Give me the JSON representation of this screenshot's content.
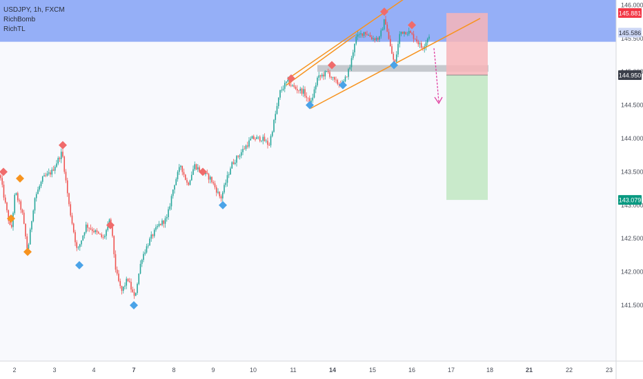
{
  "legend": {
    "symbol_line": "USDJPY, 1h, FXCM",
    "indicator_1": "RichBomb",
    "indicator_2": "RichTL"
  },
  "colors": {
    "bull": "#26a69a",
    "bear": "#ef5350",
    "resistance_zone": "#8fabf7",
    "stop_zone": "#f7b5b8",
    "target_zone": "#c6e9c8",
    "channel": "#f7931e",
    "marker_red": "#f06b6b",
    "marker_blue": "#4aa3e8",
    "marker_orange": "#f7931e",
    "arrow": "#e040a0"
  },
  "chart_data": {
    "type": "candlestick",
    "title": "",
    "xlabel": "",
    "ylabel": "",
    "ylim": [
      141.2,
      146.2
    ],
    "y_ticks": [
      "146.000",
      "145.500",
      "145.000",
      "144.500",
      "144.000",
      "143.500",
      "143.000",
      "142.500",
      "142.000",
      "141.500"
    ],
    "x_ticks": [
      "2",
      "3",
      "4",
      "7",
      "8",
      "9",
      "10",
      "11",
      "14",
      "15",
      "16",
      "17",
      "18",
      "21",
      "22",
      "23"
    ],
    "price_labels": {
      "stop_loss": "145.881",
      "current": "145.586",
      "entry": "144.950",
      "take_profit": "143.079"
    },
    "grid": false,
    "price_path": [
      [
        0,
        143.45
      ],
      [
        8,
        143.0
      ],
      [
        16,
        142.6
      ],
      [
        22,
        143.2
      ],
      [
        32,
        142.9
      ],
      [
        40,
        142.3
      ],
      [
        50,
        143.1
      ],
      [
        62,
        143.4
      ],
      [
        75,
        143.5
      ],
      [
        90,
        143.8
      ],
      [
        100,
        143.0
      ],
      [
        112,
        142.3
      ],
      [
        125,
        142.7
      ],
      [
        138,
        142.6
      ],
      [
        150,
        142.5
      ],
      [
        160,
        142.8
      ],
      [
        168,
        142.0
      ],
      [
        176,
        141.7
      ],
      [
        185,
        141.9
      ],
      [
        195,
        141.6
      ],
      [
        205,
        142.2
      ],
      [
        218,
        142.5
      ],
      [
        230,
        142.7
      ],
      [
        242,
        142.8
      ],
      [
        252,
        143.3
      ],
      [
        262,
        143.6
      ],
      [
        272,
        143.3
      ],
      [
        282,
        143.6
      ],
      [
        292,
        143.5
      ],
      [
        305,
        143.4
      ],
      [
        320,
        143.1
      ],
      [
        335,
        143.6
      ],
      [
        350,
        143.8
      ],
      [
        365,
        144.0
      ],
      [
        380,
        144.0
      ],
      [
        390,
        143.9
      ],
      [
        398,
        144.3
      ],
      [
        406,
        144.7
      ],
      [
        416,
        144.85
      ],
      [
        428,
        144.75
      ],
      [
        440,
        144.7
      ],
      [
        450,
        144.5
      ],
      [
        460,
        144.9
      ],
      [
        475,
        145.0
      ],
      [
        485,
        144.85
      ],
      [
        497,
        144.8
      ],
      [
        508,
        145.1
      ],
      [
        515,
        145.5
      ],
      [
        528,
        145.6
      ],
      [
        540,
        145.5
      ],
      [
        550,
        145.5
      ],
      [
        558,
        145.8
      ],
      [
        565,
        145.4
      ],
      [
        572,
        145.1
      ],
      [
        580,
        145.6
      ],
      [
        592,
        145.6
      ],
      [
        602,
        145.5
      ],
      [
        612,
        145.35
      ],
      [
        622,
        145.55
      ]
    ],
    "markers": {
      "red_diamonds": [
        [
          5,
          143.5
        ],
        [
          91,
          143.9
        ],
        [
          160,
          142.7
        ],
        [
          294,
          143.5
        ],
        [
          422,
          144.9
        ],
        [
          481,
          145.1
        ],
        [
          557,
          145.9
        ],
        [
          597,
          145.7
        ]
      ],
      "blue_diamonds": [
        [
          115,
          142.1
        ],
        [
          194,
          141.5
        ],
        [
          323,
          143.0
        ],
        [
          449,
          144.5
        ],
        [
          497,
          144.8
        ],
        [
          571,
          145.1
        ]
      ],
      "orange_diamonds": [
        [
          16,
          142.8
        ],
        [
          29,
          143.4
        ],
        [
          40,
          142.3
        ]
      ]
    },
    "channel_lines": [
      [
        [
          418,
          144.9
        ],
        [
          615,
          146.3
        ]
      ],
      [
        [
          450,
          144.45
        ],
        [
          696,
          145.8
        ]
      ],
      [
        [
          415,
          144.8
        ],
        [
          515,
          145.55
        ]
      ]
    ],
    "resistance_zone": [
      145.45,
      146.2
    ],
    "support_band": [
      145.0,
      145.1
    ],
    "position": {
      "entry": 144.95,
      "stop_loss": 145.881,
      "take_profit": 143.079,
      "start_index": 647,
      "end_index": 707
    }
  }
}
